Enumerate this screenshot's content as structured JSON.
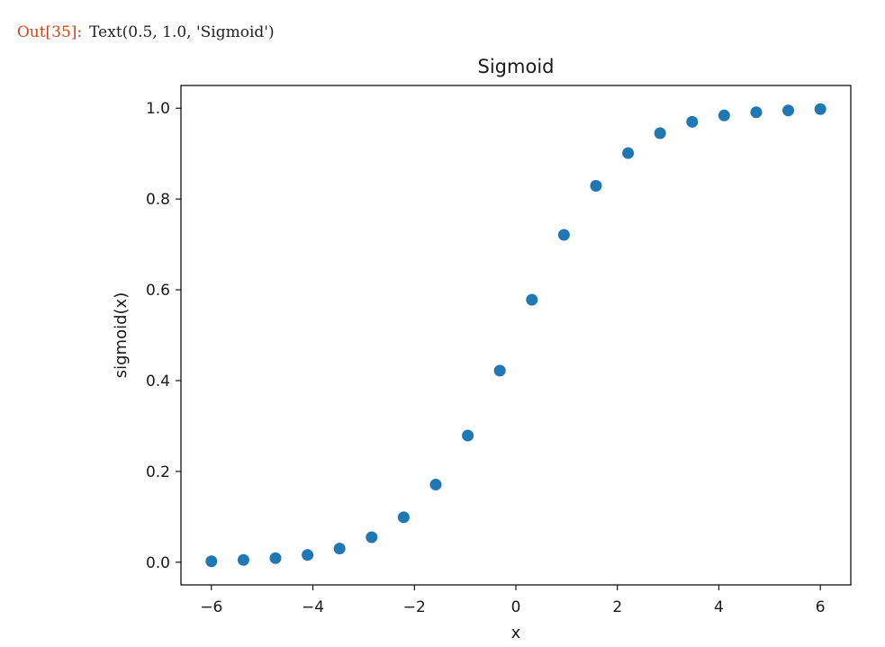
{
  "output": {
    "prompt": "Out[35]:",
    "text": "Text(0.5, 1.0, 'Sigmoid')"
  },
  "chart_data": {
    "type": "scatter",
    "title": "Sigmoid",
    "xlabel": "x",
    "ylabel": "sigmoid(x)",
    "xlim": [
      -6.6,
      6.6
    ],
    "ylim": [
      -0.05,
      1.05
    ],
    "xticks": [
      -6,
      -4,
      -2,
      0,
      2,
      4,
      6
    ],
    "xtick_labels": [
      "−6",
      "−4",
      "−2",
      "0",
      "2",
      "4",
      "6"
    ],
    "yticks": [
      0.0,
      0.2,
      0.4,
      0.6,
      0.8,
      1.0
    ],
    "ytick_labels": [
      "0.0",
      "0.2",
      "0.4",
      "0.6",
      "0.8",
      "1.0"
    ],
    "grid": false,
    "marker_color": "#1f77b4",
    "x": [
      -6.0,
      -5.368,
      -4.737,
      -4.105,
      -3.474,
      -2.842,
      -2.211,
      -1.579,
      -0.947,
      -0.316,
      0.316,
      0.947,
      1.579,
      2.211,
      2.842,
      3.474,
      4.105,
      4.737,
      5.368,
      6.0
    ],
    "y": [
      0.002,
      0.005,
      0.009,
      0.016,
      0.03,
      0.055,
      0.099,
      0.171,
      0.279,
      0.422,
      0.578,
      0.721,
      0.829,
      0.901,
      0.945,
      0.97,
      0.984,
      0.991,
      0.995,
      0.998
    ]
  }
}
